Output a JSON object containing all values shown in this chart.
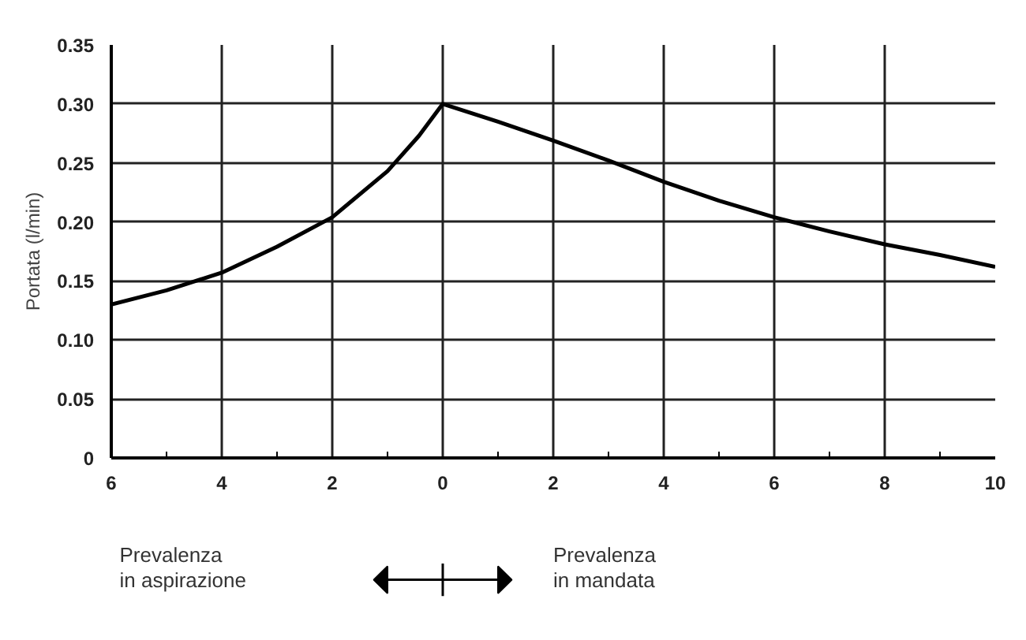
{
  "chart_data": {
    "type": "line",
    "ylabel": "Portata (l/min)",
    "x": [
      -6,
      -5,
      -4,
      -3,
      -2,
      -1,
      -0.43,
      0,
      1,
      2,
      3,
      4,
      5,
      6,
      7,
      8,
      9,
      10
    ],
    "series": [
      {
        "color": "#000000",
        "values": [
          0.13,
          0.142,
          0.157,
          0.179,
          0.204,
          0.243,
          0.273,
          0.3,
          0.285,
          0.269,
          0.252,
          0.234,
          0.218,
          0.204,
          0.192,
          0.181,
          0.172,
          0.162
        ]
      }
    ],
    "xlim": [
      -6,
      10
    ],
    "ylim": [
      0,
      0.35
    ],
    "xticks": [
      {
        "value": -6,
        "label": "6"
      },
      {
        "value": -4,
        "label": "4"
      },
      {
        "value": -2,
        "label": "2"
      },
      0,
      {
        "value": 2,
        "label": "2"
      },
      4,
      6,
      8,
      10
    ],
    "yticks": [
      0,
      0.05,
      {
        "value": 0.1,
        "label": "0.10"
      },
      0.15,
      {
        "value": 0.2,
        "label": "0.20"
      },
      0.25,
      {
        "value": 0.3,
        "label": "0.30"
      },
      0.35
    ],
    "grid": true,
    "marker": "none",
    "line_style": "solid",
    "annotations": [
      "Prevalenza\nin aspirazione",
      "Prevalenza\nin mandata"
    ]
  }
}
